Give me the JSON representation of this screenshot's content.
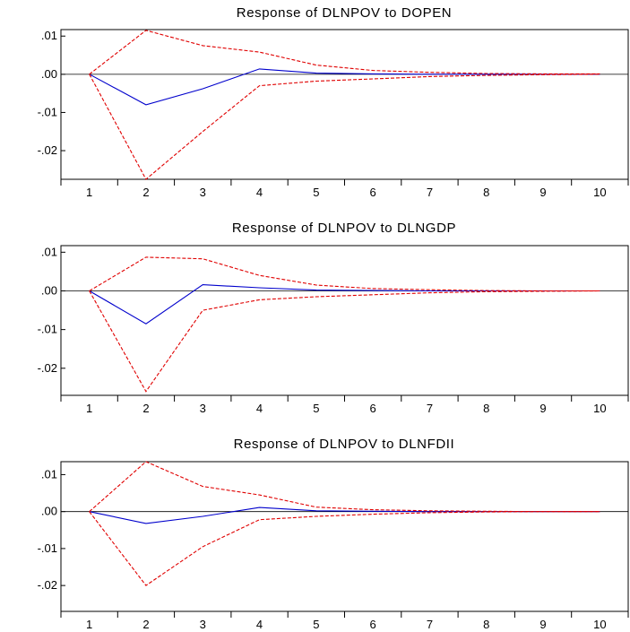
{
  "colors": {
    "response": "#0000cc",
    "bands": "#e00000",
    "axes": "#000000"
  },
  "chart_data": [
    {
      "type": "line",
      "title": "Response of DLNPOV to DOPEN",
      "x": [
        1,
        2,
        3,
        4,
        5,
        6,
        7,
        8,
        9,
        10
      ],
      "x_tick_labels": [
        "1",
        "2",
        "3",
        "4",
        "5",
        "6",
        "7",
        "8",
        "9",
        "10"
      ],
      "y_ticks": [
        0.01,
        0.0,
        -0.01,
        -0.02
      ],
      "y_tick_labels": [
        ".01",
        ".00",
        "-.01",
        "-.02"
      ],
      "ylim": [
        -0.0275,
        0.0117
      ],
      "series": [
        {
          "role": "response",
          "values": [
            0.0,
            -0.008,
            -0.0038,
            0.0014,
            0.0003,
            0.0001,
            0.0,
            0.0,
            0.0,
            0.0
          ]
        },
        {
          "role": "upper",
          "values": [
            0.0,
            0.0115,
            0.0075,
            0.0058,
            0.0024,
            0.001,
            0.0005,
            0.0002,
            0.0001,
            0.0001
          ]
        },
        {
          "role": "lower",
          "values": [
            0.0,
            -0.0275,
            -0.015,
            -0.003,
            -0.0018,
            -0.0012,
            -0.0006,
            -0.0003,
            -0.0001,
            0.0
          ]
        }
      ]
    },
    {
      "type": "line",
      "title": "Response of DLNPOV to DLNGDP",
      "x": [
        1,
        2,
        3,
        4,
        5,
        6,
        7,
        8,
        9,
        10
      ],
      "x_tick_labels": [
        "1",
        "2",
        "3",
        "4",
        "5",
        "6",
        "7",
        "8",
        "9",
        "10"
      ],
      "y_ticks": [
        0.01,
        0.0,
        -0.01,
        -0.02
      ],
      "y_tick_labels": [
        ".01",
        ".00",
        "-.01",
        "-.02"
      ],
      "ylim": [
        -0.027,
        0.0117
      ],
      "series": [
        {
          "role": "response",
          "values": [
            0.0,
            -0.0085,
            0.0016,
            0.0008,
            0.0002,
            0.0001,
            0.0,
            0.0,
            0.0,
            0.0
          ]
        },
        {
          "role": "upper",
          "values": [
            0.0,
            0.0087,
            0.0083,
            0.004,
            0.0015,
            0.0006,
            0.0003,
            0.0001,
            0.0,
            0.0
          ]
        },
        {
          "role": "lower",
          "values": [
            0.0,
            -0.026,
            -0.005,
            -0.0023,
            -0.0015,
            -0.001,
            -0.0005,
            -0.0002,
            -0.0001,
            0.0
          ]
        }
      ]
    },
    {
      "type": "line",
      "title": "Response of DLNPOV to DLNFDII",
      "x": [
        1,
        2,
        3,
        4,
        5,
        6,
        7,
        8,
        9,
        10
      ],
      "x_tick_labels": [
        "1",
        "2",
        "3",
        "4",
        "5",
        "6",
        "7",
        "8",
        "9",
        "10"
      ],
      "y_ticks": [
        0.01,
        0.0,
        -0.01,
        -0.02
      ],
      "y_tick_labels": [
        ".01",
        ".00",
        "-.01",
        "-.02"
      ],
      "ylim": [
        -0.027,
        0.0135
      ],
      "series": [
        {
          "role": "response",
          "values": [
            0.0,
            -0.0032,
            -0.0013,
            0.0011,
            0.0002,
            0.0001,
            0.0,
            0.0,
            0.0,
            0.0
          ]
        },
        {
          "role": "upper",
          "values": [
            0.0,
            0.0135,
            0.0068,
            0.0045,
            0.0012,
            0.0005,
            0.0002,
            0.0001,
            0.0,
            0.0
          ]
        },
        {
          "role": "lower",
          "values": [
            0.0,
            -0.02,
            -0.0095,
            -0.0022,
            -0.0013,
            -0.0007,
            -0.0003,
            -0.0001,
            0.0,
            0.0
          ]
        }
      ]
    }
  ]
}
